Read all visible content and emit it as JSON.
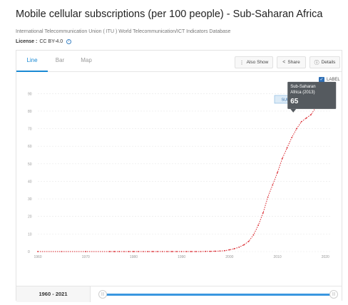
{
  "header": {
    "title": "Mobile cellular subscriptions (per 100 people) - Sub-Saharan Africa",
    "source": "International Telecommunication Union ( ITU ) World Telecommunication/ICT Indicators Database",
    "license_label": "License :",
    "license_value": "CC BY-4.0"
  },
  "tabs": [
    {
      "label": "Line",
      "active": true
    },
    {
      "label": "Bar",
      "active": false
    },
    {
      "label": "Map",
      "active": false
    }
  ],
  "toolbar": {
    "also_show": "Also Show",
    "share": "Share",
    "details": "Details"
  },
  "label_toggle": {
    "label": "LABEL",
    "checked": true
  },
  "tooltip": {
    "line1": "Sub-Saharan",
    "line2": "Africa (2013)",
    "value": "65"
  },
  "series_label": "SUB-SAHARAN AFRICA",
  "timeline": {
    "range": "1960 - 2021"
  },
  "colors": {
    "series": "#d9232a",
    "accent": "#1a8ad4",
    "tooltip_bg": "#555a5f"
  },
  "chart_data": {
    "type": "line",
    "title": "",
    "xlabel": "",
    "ylabel": "",
    "xlim": [
      1960,
      2021
    ],
    "ylim": [
      0,
      95
    ],
    "x_ticks": [
      1960,
      1970,
      1980,
      1990,
      2000,
      2010,
      2020
    ],
    "y_ticks": [
      0,
      10,
      20,
      30,
      40,
      50,
      60,
      70,
      80,
      90
    ],
    "grid": true,
    "series": [
      {
        "name": "SUB-SAHARAN AFRICA",
        "x": [
          1960,
          1965,
          1970,
          1975,
          1976,
          1977,
          1978,
          1979,
          1980,
          1981,
          1982,
          1983,
          1984,
          1985,
          1986,
          1987,
          1988,
          1989,
          1990,
          1991,
          1992,
          1993,
          1994,
          1995,
          1996,
          1997,
          1998,
          1999,
          2000,
          2001,
          2002,
          2003,
          2004,
          2005,
          2006,
          2007,
          2008,
          2009,
          2010,
          2011,
          2012,
          2013,
          2014,
          2015,
          2016,
          2017,
          2018,
          2019,
          2020,
          2021
        ],
        "y": [
          0,
          0,
          0,
          0,
          0,
          0,
          0,
          0,
          0,
          0,
          0,
          0,
          0,
          0,
          0,
          0,
          0,
          0,
          0,
          0,
          0,
          0,
          0,
          0.1,
          0.1,
          0.2,
          0.3,
          0.5,
          1.0,
          1.6,
          2.5,
          3.8,
          5.8,
          9.5,
          15,
          22,
          31,
          38,
          45,
          53,
          59,
          65,
          70,
          74,
          76,
          78,
          82,
          86,
          89,
          93
        ]
      }
    ]
  }
}
